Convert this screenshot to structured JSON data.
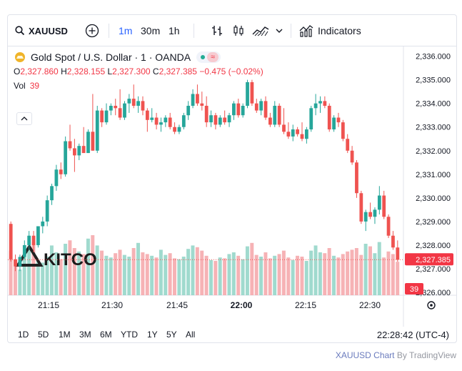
{
  "toolbar": {
    "symbol": "XAUUSD",
    "intervals": [
      "1m",
      "30m",
      "1h"
    ],
    "active_interval": "1m",
    "indicators_label": "Indicators"
  },
  "legend": {
    "title": "Gold Spot / U.S. Dollar · 1 · OANDA",
    "open_label": "O",
    "open": "2,327.860",
    "high_label": "H",
    "high": "2,328.155",
    "low_label": "L",
    "low": "2,327.300",
    "close_label": "C",
    "close": "2,327.385",
    "change": "−0.475 (−0.02%)",
    "vol_label": "Vol",
    "vol": "39"
  },
  "watermark": "KITCO",
  "price_axis": [
    "2,336.000",
    "2,335.000",
    "2,334.000",
    "2,333.000",
    "2,332.000",
    "2,331.000",
    "2,330.000",
    "2,329.000",
    "2,328.000",
    "2,327.000",
    "2,326.000"
  ],
  "last_price_label": "2,327.385",
  "last_volume_label": "39",
  "time_axis": [
    "21:15",
    "21:30",
    "21:45",
    "22:00",
    "22:15",
    "22:30"
  ],
  "ranges": [
    "1D",
    "5D",
    "1M",
    "3M",
    "6M",
    "YTD",
    "1Y",
    "5Y",
    "All"
  ],
  "clock": "22:28:42 (UTC-4)",
  "credit": {
    "symbol": "XAUUSD Chart",
    "by": "By TradingView"
  },
  "colors": {
    "up": "#26a69a",
    "down": "#ef5350",
    "accent": "#2962ff"
  },
  "chart_data": {
    "type": "candlestick",
    "ylim": [
      2326,
      2336.2
    ],
    "candles": [
      [
        2328.9,
        2329.0,
        2327.3,
        2327.4
      ],
      [
        2327.4,
        2327.6,
        2326.9,
        2327.1
      ],
      [
        2327.1,
        2327.6,
        2326.9,
        2327.5
      ],
      [
        2327.5,
        2328.2,
        2327.4,
        2328.0
      ],
      [
        2328.0,
        2328.6,
        2327.8,
        2328.4
      ],
      [
        2328.4,
        2328.6,
        2327.7,
        2328.0
      ],
      [
        2328.0,
        2328.8,
        2327.9,
        2328.8
      ],
      [
        2328.8,
        2329.2,
        2328.5,
        2329.0
      ],
      [
        2329.0,
        2330.1,
        2328.8,
        2329.9
      ],
      [
        2329.9,
        2330.6,
        2329.7,
        2330.5
      ],
      [
        2330.5,
        2331.4,
        2330.3,
        2331.2
      ],
      [
        2331.2,
        2331.5,
        2330.8,
        2331.0
      ],
      [
        2331.0,
        2332.6,
        2330.9,
        2332.4
      ],
      [
        2332.4,
        2333.1,
        2332.0,
        2332.1
      ],
      [
        2332.1,
        2332.5,
        2331.1,
        2331.8
      ],
      [
        2331.8,
        2332.3,
        2331.6,
        2332.2
      ],
      [
        2332.2,
        2333.0,
        2331.9,
        2331.9
      ],
      [
        2331.9,
        2332.9,
        2331.9,
        2332.8
      ],
      [
        2332.8,
        2334.4,
        2332.0,
        2332.0
      ],
      [
        2332.0,
        2333.9,
        2331.9,
        2333.7
      ],
      [
        2333.7,
        2333.8,
        2333.0,
        2333.2
      ],
      [
        2333.2,
        2334.0,
        2333.1,
        2333.7
      ],
      [
        2333.7,
        2334.0,
        2333.5,
        2333.9
      ],
      [
        2333.9,
        2334.2,
        2333.5,
        2333.8
      ],
      [
        2333.8,
        2334.6,
        2333.3,
        2333.4
      ],
      [
        2333.4,
        2334.1,
        2333.3,
        2334.0
      ],
      [
        2334.0,
        2334.4,
        2333.6,
        2334.2
      ],
      [
        2334.2,
        2334.8,
        2333.8,
        2333.9
      ],
      [
        2333.9,
        2334.3,
        2333.6,
        2334.1
      ],
      [
        2334.1,
        2334.3,
        2333.5,
        2333.7
      ],
      [
        2333.7,
        2333.8,
        2332.8,
        2333.3
      ],
      [
        2333.3,
        2333.8,
        2333.2,
        2333.4
      ],
      [
        2333.4,
        2333.6,
        2332.9,
        2333.1
      ],
      [
        2333.1,
        2333.4,
        2332.8,
        2333.2
      ],
      [
        2333.2,
        2333.5,
        2333.0,
        2333.4
      ],
      [
        2333.4,
        2333.6,
        2332.9,
        2333.0
      ],
      [
        2333.0,
        2333.2,
        2332.7,
        2332.8
      ],
      [
        2332.8,
        2333.1,
        2332.7,
        2333.0
      ],
      [
        2333.0,
        2333.6,
        2332.9,
        2333.5
      ],
      [
        2333.5,
        2334.1,
        2333.3,
        2333.9
      ],
      [
        2333.9,
        2334.6,
        2333.8,
        2334.4
      ],
      [
        2334.4,
        2334.8,
        2333.9,
        2334.0
      ],
      [
        2334.0,
        2334.5,
        2333.7,
        2333.9
      ],
      [
        2333.9,
        2334.3,
        2333.0,
        2333.2
      ],
      [
        2333.2,
        2333.7,
        2333.0,
        2333.5
      ],
      [
        2333.5,
        2333.6,
        2332.9,
        2333.1
      ],
      [
        2333.1,
        2333.5,
        2333.0,
        2333.4
      ],
      [
        2333.4,
        2333.7,
        2333.1,
        2333.2
      ],
      [
        2333.2,
        2333.6,
        2333.0,
        2333.5
      ],
      [
        2333.5,
        2334.1,
        2333.3,
        2334.0
      ],
      [
        2334.0,
        2334.2,
        2333.4,
        2333.5
      ],
      [
        2333.5,
        2334.0,
        2333.4,
        2333.9
      ],
      [
        2333.9,
        2335.0,
        2333.8,
        2334.9
      ],
      [
        2334.9,
        2335.0,
        2333.9,
        2334.0
      ],
      [
        2334.0,
        2334.2,
        2333.6,
        2333.7
      ],
      [
        2333.7,
        2334.2,
        2333.5,
        2334.1
      ],
      [
        2334.1,
        2334.3,
        2333.3,
        2333.4
      ],
      [
        2333.4,
        2333.6,
        2333.0,
        2333.1
      ],
      [
        2333.1,
        2334.1,
        2333.0,
        2333.9
      ],
      [
        2333.9,
        2334.0,
        2333.0,
        2333.1
      ],
      [
        2333.1,
        2333.8,
        2332.7,
        2332.8
      ],
      [
        2332.8,
        2333.2,
        2332.5,
        2332.6
      ],
      [
        2332.6,
        2333.1,
        2332.4,
        2332.9
      ],
      [
        2332.9,
        2333.0,
        2332.6,
        2332.7
      ],
      [
        2332.7,
        2333.2,
        2332.4,
        2332.5
      ],
      [
        2332.5,
        2333.0,
        2332.3,
        2332.9
      ],
      [
        2332.9,
        2333.9,
        2332.8,
        2333.8
      ],
      [
        2333.8,
        2334.4,
        2333.5,
        2334.0
      ],
      [
        2334.0,
        2334.3,
        2333.6,
        2334.1
      ],
      [
        2334.1,
        2334.3,
        2333.8,
        2333.9
      ],
      [
        2333.9,
        2334.0,
        2332.8,
        2332.9
      ],
      [
        2332.9,
        2333.5,
        2332.8,
        2333.4
      ],
      [
        2333.4,
        2333.6,
        2333.0,
        2333.2
      ],
      [
        2333.2,
        2333.3,
        2332.4,
        2332.5
      ],
      [
        2332.5,
        2332.7,
        2331.9,
        2332.0
      ],
      [
        2332.0,
        2332.2,
        2331.4,
        2331.5
      ],
      [
        2331.5,
        2331.6,
        2330.0,
        2330.2
      ],
      [
        2330.2,
        2330.3,
        2328.9,
        2329.0
      ],
      [
        2329.0,
        2329.5,
        2328.6,
        2329.4
      ],
      [
        2329.4,
        2329.8,
        2329.1,
        2329.2
      ],
      [
        2329.2,
        2329.6,
        2328.9,
        2329.5
      ],
      [
        2329.5,
        2330.5,
        2329.3,
        2330.1
      ],
      [
        2330.1,
        2330.3,
        2329.1,
        2329.2
      ],
      [
        2329.2,
        2329.3,
        2328.3,
        2328.4
      ],
      [
        2328.4,
        2328.6,
        2327.8,
        2327.9
      ],
      [
        2327.9,
        2328.2,
        2327.3,
        2327.385
      ]
    ],
    "volumes": [
      52,
      41,
      30,
      48,
      55,
      62,
      40,
      38,
      45,
      58,
      50,
      42,
      60,
      64,
      55,
      51,
      48,
      66,
      70,
      58,
      52,
      46,
      44,
      49,
      53,
      47,
      45,
      55,
      61,
      50,
      48,
      46,
      44,
      53,
      47,
      49,
      43,
      42,
      45,
      54,
      58,
      56,
      52,
      46,
      41,
      40,
      44,
      43,
      48,
      50,
      46,
      42,
      57,
      61,
      47,
      45,
      50,
      43,
      46,
      48,
      52,
      44,
      41,
      46,
      45,
      40,
      52,
      58,
      50,
      49,
      55,
      46,
      44,
      48,
      51,
      53,
      55,
      47,
      60,
      57,
      49,
      62,
      44,
      51,
      48,
      39
    ]
  }
}
